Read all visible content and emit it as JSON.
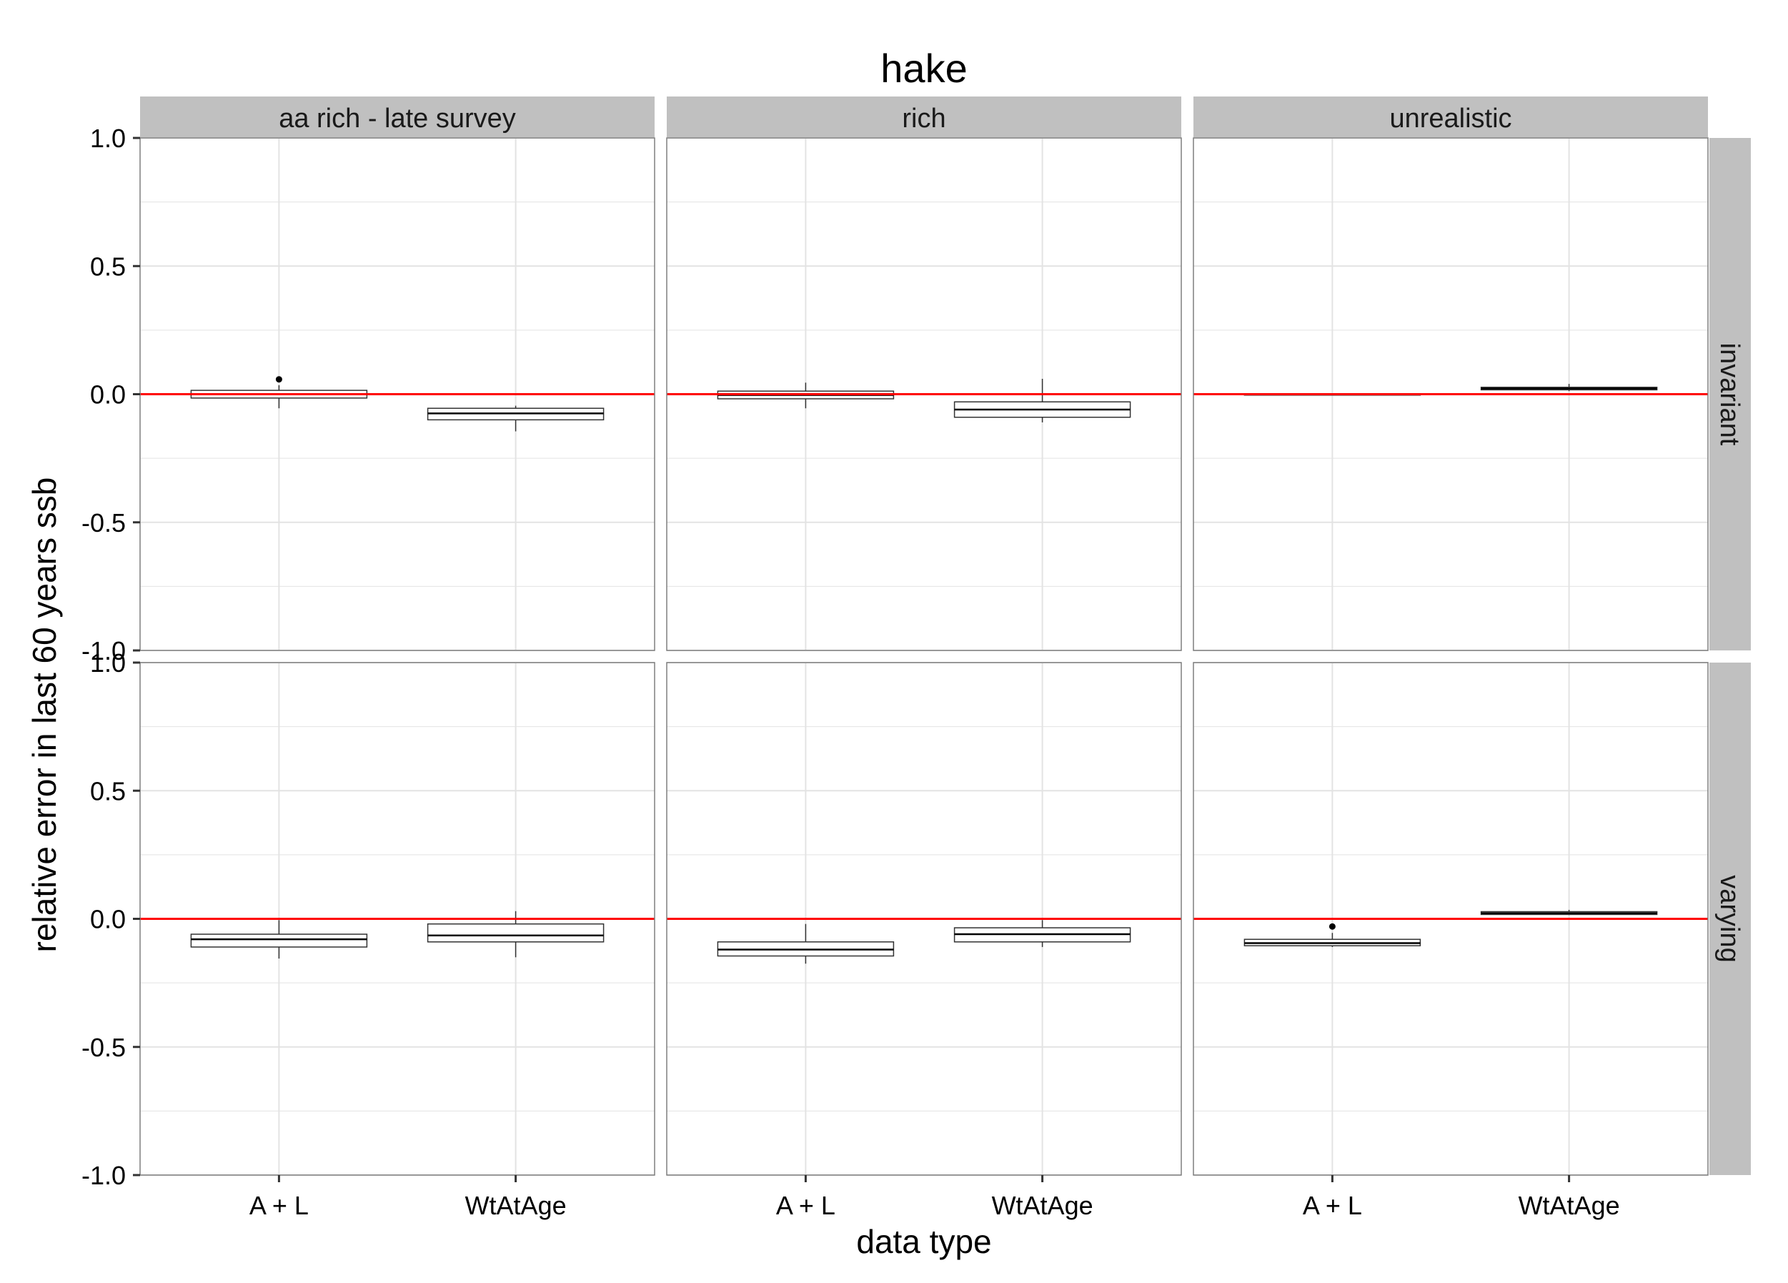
{
  "chart_data": {
    "type": "box",
    "title": "hake",
    "xlabel": "data type",
    "ylabel": "relative error in last 60 years ssb",
    "ylim": [
      -1.0,
      1.0
    ],
    "y_ticks": [
      -1.0,
      -0.5,
      0.0,
      0.5,
      1.0
    ],
    "y_tick_labels": [
      "-1.0",
      "-0.5",
      "0.0",
      "0.5",
      "1.0"
    ],
    "categories": [
      "A + L",
      "WtAtAge"
    ],
    "columns": [
      "aa rich - late survey",
      "rich",
      "unrealistic"
    ],
    "rows": [
      "invariant",
      "varying"
    ],
    "reference_line": {
      "y": 0.0,
      "color": "#ff0000"
    },
    "grid": true,
    "colors": {
      "strip": "#c0c0c0",
      "panel_border": "#7f7f7f",
      "grid": "#e3e3e3",
      "box": "#333333",
      "reference": "#ff0000"
    },
    "panels": [
      {
        "column": "aa rich - late survey",
        "row": "invariant",
        "boxes": [
          {
            "category": "A + L",
            "lower_whisker": -0.055,
            "q1": -0.015,
            "median": 0.0,
            "q3": 0.015,
            "upper_whisker": 0.035,
            "outliers": [
              0.058
            ]
          },
          {
            "category": "WtAtAge",
            "lower_whisker": -0.145,
            "q1": -0.1,
            "median": -0.075,
            "q3": -0.055,
            "upper_whisker": -0.045,
            "outliers": []
          }
        ]
      },
      {
        "column": "rich",
        "row": "invariant",
        "boxes": [
          {
            "category": "A + L",
            "lower_whisker": -0.055,
            "q1": -0.018,
            "median": -0.003,
            "q3": 0.012,
            "upper_whisker": 0.045,
            "outliers": []
          },
          {
            "category": "WtAtAge",
            "lower_whisker": -0.11,
            "q1": -0.09,
            "median": -0.06,
            "q3": -0.03,
            "upper_whisker": 0.06,
            "outliers": []
          }
        ]
      },
      {
        "column": "unrealistic",
        "row": "invariant",
        "boxes": [
          {
            "category": "A + L",
            "lower_whisker": -0.003,
            "q1": -0.002,
            "median": 0.0,
            "q3": 0.002,
            "upper_whisker": 0.003,
            "outliers": []
          },
          {
            "category": "WtAtAge",
            "lower_whisker": 0.012,
            "q1": 0.017,
            "median": 0.022,
            "q3": 0.027,
            "upper_whisker": 0.04,
            "outliers": []
          }
        ]
      },
      {
        "column": "aa rich - late survey",
        "row": "varying",
        "boxes": [
          {
            "category": "A + L",
            "lower_whisker": -0.155,
            "q1": -0.11,
            "median": -0.08,
            "q3": -0.06,
            "upper_whisker": -0.005,
            "outliers": []
          },
          {
            "category": "WtAtAge",
            "lower_whisker": -0.15,
            "q1": -0.09,
            "median": -0.065,
            "q3": -0.02,
            "upper_whisker": 0.03,
            "outliers": []
          }
        ]
      },
      {
        "column": "rich",
        "row": "varying",
        "boxes": [
          {
            "category": "A + L",
            "lower_whisker": -0.175,
            "q1": -0.145,
            "median": -0.12,
            "q3": -0.09,
            "upper_whisker": -0.02,
            "outliers": []
          },
          {
            "category": "WtAtAge",
            "lower_whisker": -0.11,
            "q1": -0.09,
            "median": -0.06,
            "q3": -0.035,
            "upper_whisker": -0.005,
            "outliers": []
          }
        ]
      },
      {
        "column": "unrealistic",
        "row": "varying",
        "boxes": [
          {
            "category": "A + L",
            "lower_whisker": -0.11,
            "q1": -0.105,
            "median": -0.095,
            "q3": -0.08,
            "upper_whisker": -0.055,
            "outliers": [
              -0.03
            ]
          },
          {
            "category": "WtAtAge",
            "lower_whisker": 0.015,
            "q1": 0.017,
            "median": 0.022,
            "q3": 0.028,
            "upper_whisker": 0.035,
            "outliers": []
          }
        ]
      }
    ]
  }
}
